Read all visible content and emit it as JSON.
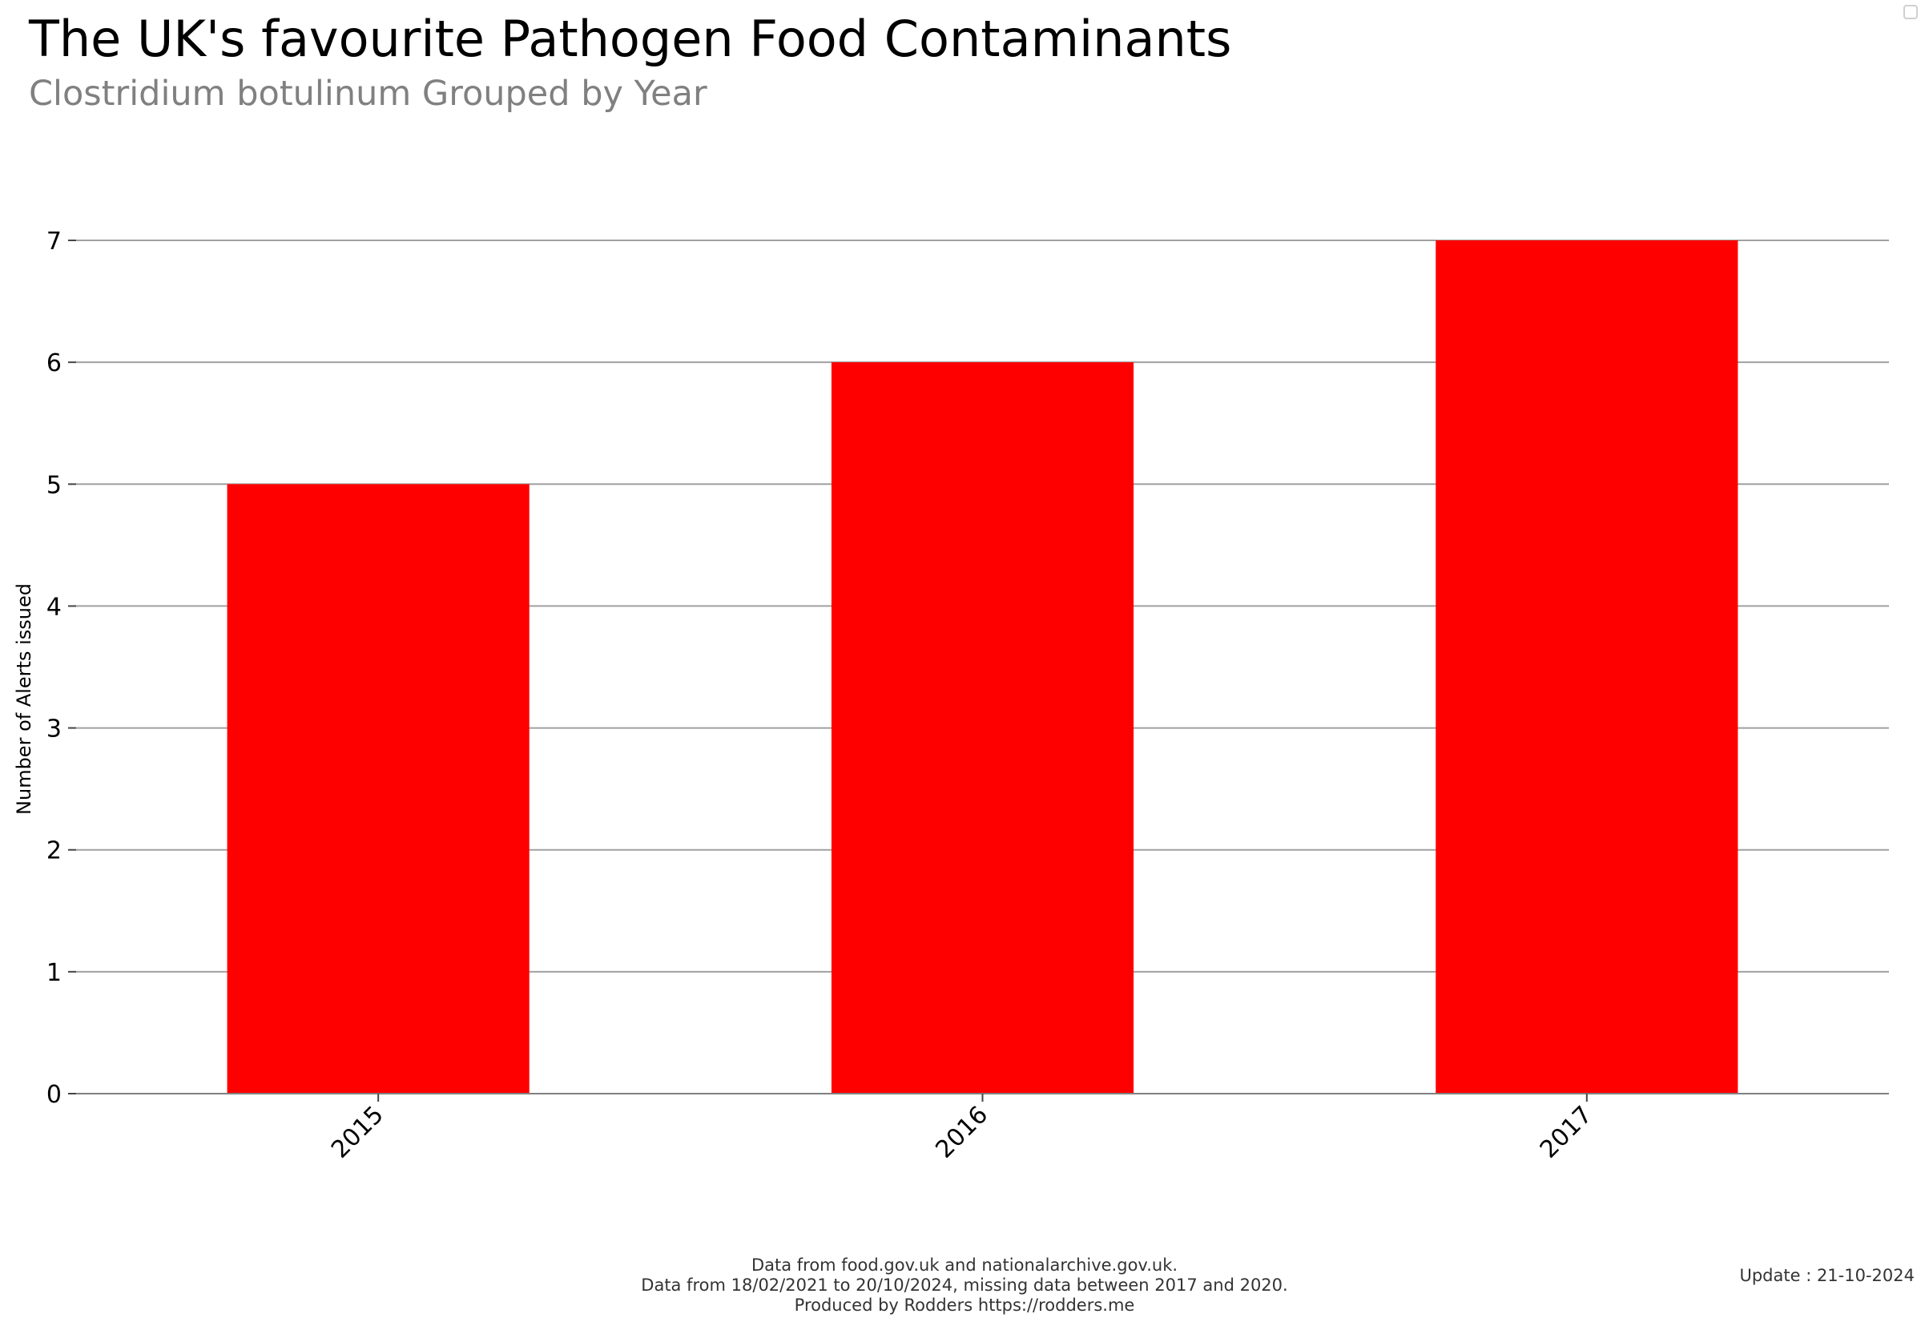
{
  "header": {
    "title": "The UK's favourite Pathogen Food Contaminants",
    "subtitle": "Clostridium botulinum Grouped by Year"
  },
  "chart_data": {
    "type": "bar",
    "title": "The UK's favourite Pathogen Food Contaminants",
    "subtitle": "Clostridium botulinum Grouped by Year",
    "categories": [
      "2015",
      "2016",
      "2017"
    ],
    "values": [
      5,
      6,
      7
    ],
    "xlabel": "",
    "ylabel": "Number of Alerts issued",
    "ylim": [
      0,
      7
    ],
    "yticks": [
      0,
      1,
      2,
      3,
      4,
      5,
      6,
      7
    ],
    "grid": true,
    "bar_color": "#ff0000",
    "grid_color": "#a0a0a0",
    "xtick_rotation_deg": -45
  },
  "footer": {
    "lines": [
      "Data from food.gov.uk and nationalarchive.gov.uk.",
      "Data from 18/02/2021 to 20/10/2024, missing data between 2017 and 2020.",
      "Produced by Rodders https://rodders.me"
    ],
    "update": "Update : 21-10-2024"
  }
}
